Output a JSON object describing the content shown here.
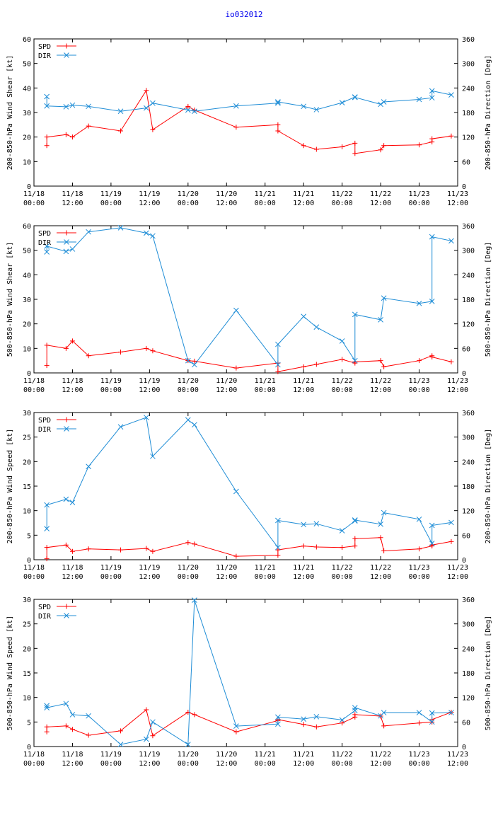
{
  "title": "io032012",
  "x_ticks": [
    {
      "d": "11/18",
      "t": "00:00"
    },
    {
      "d": "11/18",
      "t": "12:00"
    },
    {
      "d": "11/19",
      "t": "00:00"
    },
    {
      "d": "11/19",
      "t": "12:00"
    },
    {
      "d": "11/20",
      "t": "00:00"
    },
    {
      "d": "11/20",
      "t": "12:00"
    },
    {
      "d": "11/21",
      "t": "00:00"
    },
    {
      "d": "11/21",
      "t": "12:00"
    },
    {
      "d": "11/22",
      "t": "00:00"
    },
    {
      "d": "11/22",
      "t": "12:00"
    },
    {
      "d": "11/23",
      "t": "00:00"
    },
    {
      "d": "11/23",
      "t": "12:00"
    }
  ],
  "colors": {
    "spd": "#ff0000",
    "dir": "#1f8dd6",
    "title": "#0000ee"
  },
  "chart_data": [
    {
      "type": "line",
      "ylabel": "200-850-hPa Wind Shear [kt]",
      "y2label": "200-850-hPa Direction [Deg]",
      "ylim": [
        0,
        60
      ],
      "y2lim": [
        0,
        360
      ],
      "yticks": [
        0,
        10,
        20,
        30,
        40,
        50,
        60
      ],
      "y2ticks": [
        0,
        60,
        120,
        180,
        240,
        300,
        360
      ],
      "x_unit": "hours from 11/18 00:00",
      "xlim": [
        0,
        132
      ],
      "legend": "top-left",
      "series": [
        {
          "name": "SPD",
          "axis": "left",
          "marker": "plus",
          "x": [
            4,
            4,
            10,
            12,
            17,
            27,
            35,
            37,
            48,
            50,
            63,
            76,
            76,
            84,
            88,
            96,
            100,
            100,
            108,
            109,
            120,
            124,
            124,
            130
          ],
          "y": [
            16.5,
            20,
            21,
            20,
            24.5,
            22.5,
            39,
            23,
            32.5,
            31,
            24,
            25,
            22.5,
            16.5,
            15,
            16,
            17.5,
            13.3,
            14.8,
            16.5,
            16.8,
            18,
            19.3,
            20.4
          ]
        },
        {
          "name": "DIR",
          "axis": "right",
          "marker": "x",
          "x": [
            4,
            4,
            10,
            12,
            17,
            27,
            35,
            37,
            48,
            50,
            63,
            76,
            76,
            84,
            88,
            96,
            100,
            100,
            108,
            109,
            120,
            124,
            124,
            130
          ],
          "y": [
            219,
            196,
            194,
            198,
            195,
            183,
            191,
            203,
            186,
            183,
            196,
            203,
            206,
            195,
            187,
            204,
            218,
            217,
            200,
            206,
            212,
            216,
            233,
            223
          ]
        }
      ]
    },
    {
      "type": "line",
      "ylabel": "500-850-hPa Wind Shear [kt]",
      "y2label": "500-850-hPa Direction [Deg]",
      "ylim": [
        0,
        60
      ],
      "y2lim": [
        0,
        360
      ],
      "yticks": [
        0,
        10,
        20,
        30,
        40,
        50,
        60
      ],
      "y2ticks": [
        0,
        60,
        120,
        180,
        240,
        300,
        360
      ],
      "x_unit": "hours from 11/18 00:00",
      "xlim": [
        0,
        132
      ],
      "legend": "top-left",
      "series": [
        {
          "name": "SPD",
          "axis": "left",
          "marker": "plus",
          "x": [
            4,
            4,
            10,
            12,
            17,
            27,
            35,
            37,
            48,
            50,
            63,
            76,
            76,
            84,
            88,
            96,
            100,
            100,
            108,
            109,
            120,
            124,
            124,
            130
          ],
          "y": [
            3,
            11.3,
            10,
            13,
            7,
            8.5,
            10,
            9,
            5,
            4.8,
            2,
            4,
            0.5,
            2.5,
            3.5,
            5.5,
            4,
            4.5,
            5,
            2.5,
            5,
            7,
            6.5,
            4.5
          ]
        },
        {
          "name": "DIR",
          "axis": "right",
          "marker": "x",
          "x": [
            4,
            4,
            10,
            12,
            17,
            27,
            35,
            37,
            48,
            50,
            63,
            76,
            76,
            84,
            88,
            96,
            100,
            100,
            108,
            109,
            120,
            124,
            124,
            130
          ],
          "y": [
            296,
            310,
            297,
            303,
            345,
            355,
            342,
            335,
            30,
            20,
            153,
            20,
            70,
            138,
            112,
            78,
            30,
            143,
            130,
            183,
            170,
            175,
            333,
            323
          ]
        }
      ]
    },
    {
      "type": "line",
      "ylabel": "200-850-hPa Wind Speed [kt]",
      "y2label": "200-850-hPa Direction [Deg]",
      "ylim": [
        0,
        30
      ],
      "y2lim": [
        0,
        360
      ],
      "yticks": [
        0,
        5,
        10,
        15,
        20,
        25,
        30
      ],
      "y2ticks": [
        0,
        60,
        120,
        180,
        240,
        300,
        360
      ],
      "x_unit": "hours from 11/18 00:00",
      "xlim": [
        0,
        132
      ],
      "legend": "top-left",
      "series": [
        {
          "name": "SPD",
          "axis": "left",
          "marker": "plus",
          "x": [
            4,
            4,
            10,
            12,
            17,
            27,
            35,
            37,
            48,
            50,
            63,
            76,
            76,
            84,
            88,
            96,
            100,
            100,
            108,
            109,
            120,
            124,
            124,
            130
          ],
          "y": [
            0.2,
            2.5,
            3,
            1.7,
            2.2,
            2,
            2.3,
            1.7,
            3.5,
            3.2,
            0.7,
            0.9,
            2,
            2.8,
            2.6,
            2.5,
            2.8,
            4.3,
            4.5,
            1.8,
            2.2,
            2.8,
            3,
            3.7
          ]
        },
        {
          "name": "DIR",
          "axis": "right",
          "marker": "x",
          "x": [
            4,
            4,
            10,
            12,
            17,
            27,
            35,
            37,
            48,
            50,
            63,
            76,
            76,
            84,
            88,
            96,
            100,
            100,
            108,
            109,
            120,
            124,
            124,
            130
          ],
          "y": [
            76,
            134,
            148,
            140,
            228,
            325,
            348,
            253,
            342,
            330,
            167,
            30,
            96,
            86,
            88,
            71,
            95,
            97,
            87,
            115,
            99,
            40,
            84,
            91
          ]
        }
      ]
    },
    {
      "type": "line",
      "ylabel": "500-850-hPa Wind Speed [kt]",
      "y2label": "500-850-hPa Direction [Deg]",
      "ylim": [
        0,
        30
      ],
      "y2lim": [
        0,
        360
      ],
      "yticks": [
        0,
        5,
        10,
        15,
        20,
        25,
        30
      ],
      "y2ticks": [
        0,
        60,
        120,
        180,
        240,
        300,
        360
      ],
      "x_unit": "hours from 11/18 00:00",
      "xlim": [
        0,
        132
      ],
      "legend": "top-left",
      "series": [
        {
          "name": "SPD",
          "axis": "left",
          "marker": "plus",
          "x": [
            4,
            4,
            10,
            12,
            17,
            27,
            35,
            37,
            48,
            50,
            63,
            76,
            76,
            84,
            88,
            96,
            100,
            100,
            108,
            109,
            120,
            124,
            124,
            130
          ],
          "y": [
            3,
            4,
            4.2,
            3.5,
            2.3,
            3.2,
            7.5,
            2.2,
            7,
            6.5,
            3,
            5.3,
            5.5,
            4.5,
            4,
            4.8,
            6,
            6.5,
            6.2,
            4.2,
            4.8,
            5,
            5.5,
            7
          ]
        },
        {
          "name": "DIR",
          "axis": "right",
          "marker": "x",
          "x": [
            4,
            4,
            10,
            12,
            17,
            27,
            35,
            37,
            48,
            50,
            63,
            76,
            76,
            84,
            88,
            96,
            100,
            100,
            108,
            109,
            120,
            124,
            124,
            130
          ],
          "y": [
            100,
            95,
            105,
            78,
            75,
            5,
            18,
            60,
            5,
            358,
            50,
            55,
            72,
            67,
            73,
            65,
            88,
            95,
            75,
            83,
            83,
            60,
            82,
            83
          ]
        }
      ]
    }
  ]
}
